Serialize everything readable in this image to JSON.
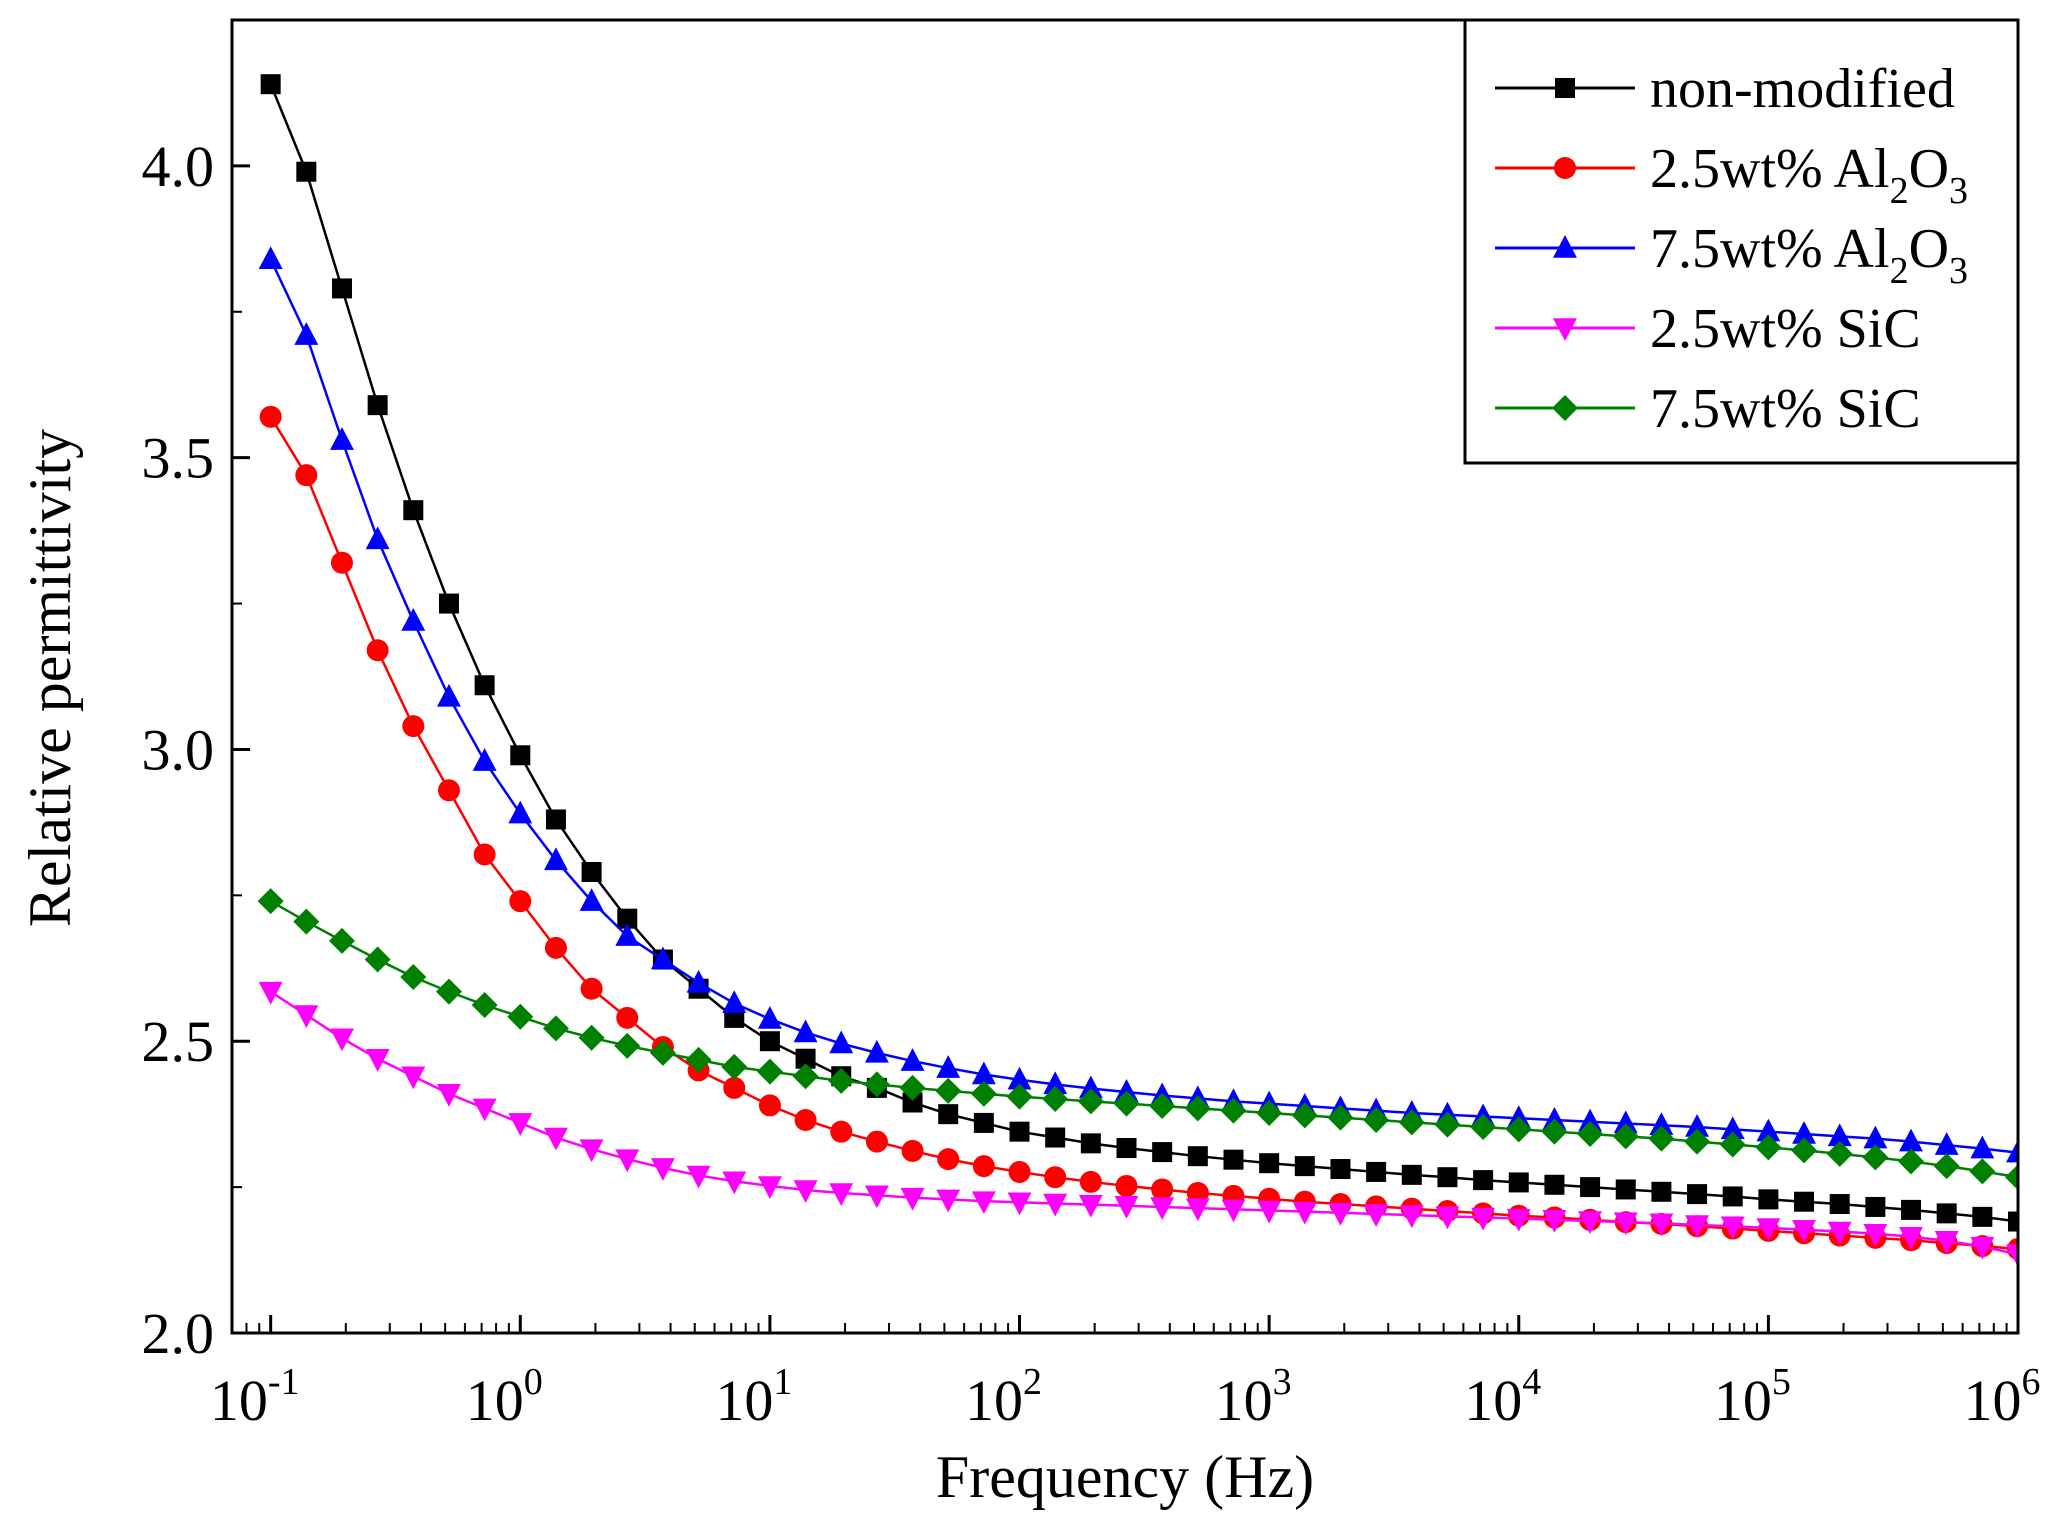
{
  "chart_data": {
    "type": "line",
    "title": "",
    "xlabel": "Frequency (Hz)",
    "ylabel": "Relative permittivity",
    "xscale": "log",
    "xlim": [
      0.07,
      1000000
    ],
    "ylim": [
      2.0,
      4.25
    ],
    "xticks": [
      {
        "base": "10",
        "exp": "-1",
        "value": 0.1
      },
      {
        "base": "10",
        "exp": "0",
        "value": 1
      },
      {
        "base": "10",
        "exp": "1",
        "value": 10
      },
      {
        "base": "10",
        "exp": "2",
        "value": 100
      },
      {
        "base": "10",
        "exp": "3",
        "value": 1000
      },
      {
        "base": "10",
        "exp": "4",
        "value": 10000
      },
      {
        "base": "10",
        "exp": "5",
        "value": 100000
      },
      {
        "base": "10",
        "exp": "6",
        "value": 1000000
      }
    ],
    "yticks": [
      "2.0",
      "2.5",
      "3.0",
      "3.5",
      "4.0"
    ],
    "legend_position": "top-right",
    "points_per_decade": 7,
    "x_start_log10": -1,
    "x_end_log10": 6,
    "series": [
      {
        "name": "non-modified",
        "legend": [
          {
            "t": "non-modified"
          }
        ],
        "color": "#000000",
        "marker": "square",
        "values": [
          4.14,
          3.99,
          3.79,
          3.59,
          3.41,
          3.25,
          3.11,
          2.99,
          2.88,
          2.79,
          2.71,
          2.64,
          2.59,
          2.54,
          2.5,
          2.47,
          2.44,
          2.42,
          2.395,
          2.375,
          2.36,
          2.345,
          2.335,
          2.325,
          2.317,
          2.31,
          2.303,
          2.297,
          2.291,
          2.286,
          2.281,
          2.276,
          2.271,
          2.267,
          2.262,
          2.258,
          2.254,
          2.25,
          2.246,
          2.242,
          2.238,
          2.234,
          2.229,
          2.225,
          2.221,
          2.216,
          2.211,
          2.205,
          2.199,
          2.191
        ]
      },
      {
        "name": "2.5wt% Al2O3",
        "legend": [
          {
            "t": "2.5wt% Al"
          },
          {
            "t": "2",
            "sub": true
          },
          {
            "t": "O"
          },
          {
            "t": "3",
            "sub": true
          }
        ],
        "color": "#ff0000",
        "marker": "circle",
        "values": [
          3.57,
          3.47,
          3.32,
          3.17,
          3.04,
          2.93,
          2.82,
          2.74,
          2.66,
          2.59,
          2.54,
          2.49,
          2.45,
          2.42,
          2.39,
          2.365,
          2.345,
          2.328,
          2.312,
          2.298,
          2.286,
          2.276,
          2.267,
          2.259,
          2.252,
          2.246,
          2.24,
          2.235,
          2.23,
          2.225,
          2.221,
          2.217,
          2.213,
          2.209,
          2.205,
          2.201,
          2.198,
          2.194,
          2.19,
          2.187,
          2.183,
          2.179,
          2.175,
          2.171,
          2.167,
          2.163,
          2.159,
          2.154,
          2.149,
          2.144
        ]
      },
      {
        "name": "7.5wt% Al2O3",
        "legend": [
          {
            "t": "7.5wt% Al"
          },
          {
            "t": "2",
            "sub": true
          },
          {
            "t": "O"
          },
          {
            "t": "3",
            "sub": true
          }
        ],
        "color": "#0000ff",
        "marker": "triangle-up",
        "values": [
          3.84,
          3.71,
          3.53,
          3.36,
          3.22,
          3.09,
          2.98,
          2.89,
          2.81,
          2.74,
          2.68,
          2.64,
          2.6,
          2.565,
          2.538,
          2.515,
          2.496,
          2.48,
          2.466,
          2.454,
          2.443,
          2.434,
          2.426,
          2.419,
          2.413,
          2.407,
          2.402,
          2.397,
          2.393,
          2.389,
          2.385,
          2.381,
          2.377,
          2.374,
          2.371,
          2.368,
          2.365,
          2.362,
          2.359,
          2.356,
          2.353,
          2.349,
          2.345,
          2.341,
          2.337,
          2.333,
          2.328,
          2.322,
          2.316,
          2.309
        ]
      },
      {
        "name": "2.5wt% SiC",
        "legend": [
          {
            "t": "2.5wt% SiC"
          }
        ],
        "color": "#ff00ff",
        "marker": "triangle-down",
        "values": [
          2.585,
          2.545,
          2.505,
          2.47,
          2.44,
          2.41,
          2.385,
          2.36,
          2.335,
          2.315,
          2.298,
          2.283,
          2.27,
          2.26,
          2.252,
          2.245,
          2.24,
          2.236,
          2.232,
          2.229,
          2.226,
          2.224,
          2.222,
          2.22,
          2.218,
          2.216,
          2.214,
          2.212,
          2.21,
          2.208,
          2.206,
          2.204,
          2.202,
          2.2,
          2.198,
          2.196,
          2.194,
          2.192,
          2.19,
          2.188,
          2.185,
          2.183,
          2.18,
          2.177,
          2.174,
          2.17,
          2.165,
          2.158,
          2.148,
          2.135
        ]
      },
      {
        "name": "7.5wt% SiC",
        "legend": [
          {
            "t": "7.5wt% SiC"
          }
        ],
        "color": "#008000",
        "marker": "diamond",
        "values": [
          2.74,
          2.705,
          2.672,
          2.64,
          2.61,
          2.585,
          2.562,
          2.542,
          2.522,
          2.506,
          2.492,
          2.48,
          2.468,
          2.456,
          2.448,
          2.44,
          2.432,
          2.426,
          2.42,
          2.415,
          2.41,
          2.405,
          2.401,
          2.397,
          2.393,
          2.389,
          2.385,
          2.381,
          2.377,
          2.373,
          2.369,
          2.365,
          2.361,
          2.357,
          2.353,
          2.349,
          2.345,
          2.341,
          2.337,
          2.333,
          2.328,
          2.323,
          2.318,
          2.313,
          2.307,
          2.301,
          2.294,
          2.286,
          2.277,
          2.267
        ]
      }
    ]
  }
}
